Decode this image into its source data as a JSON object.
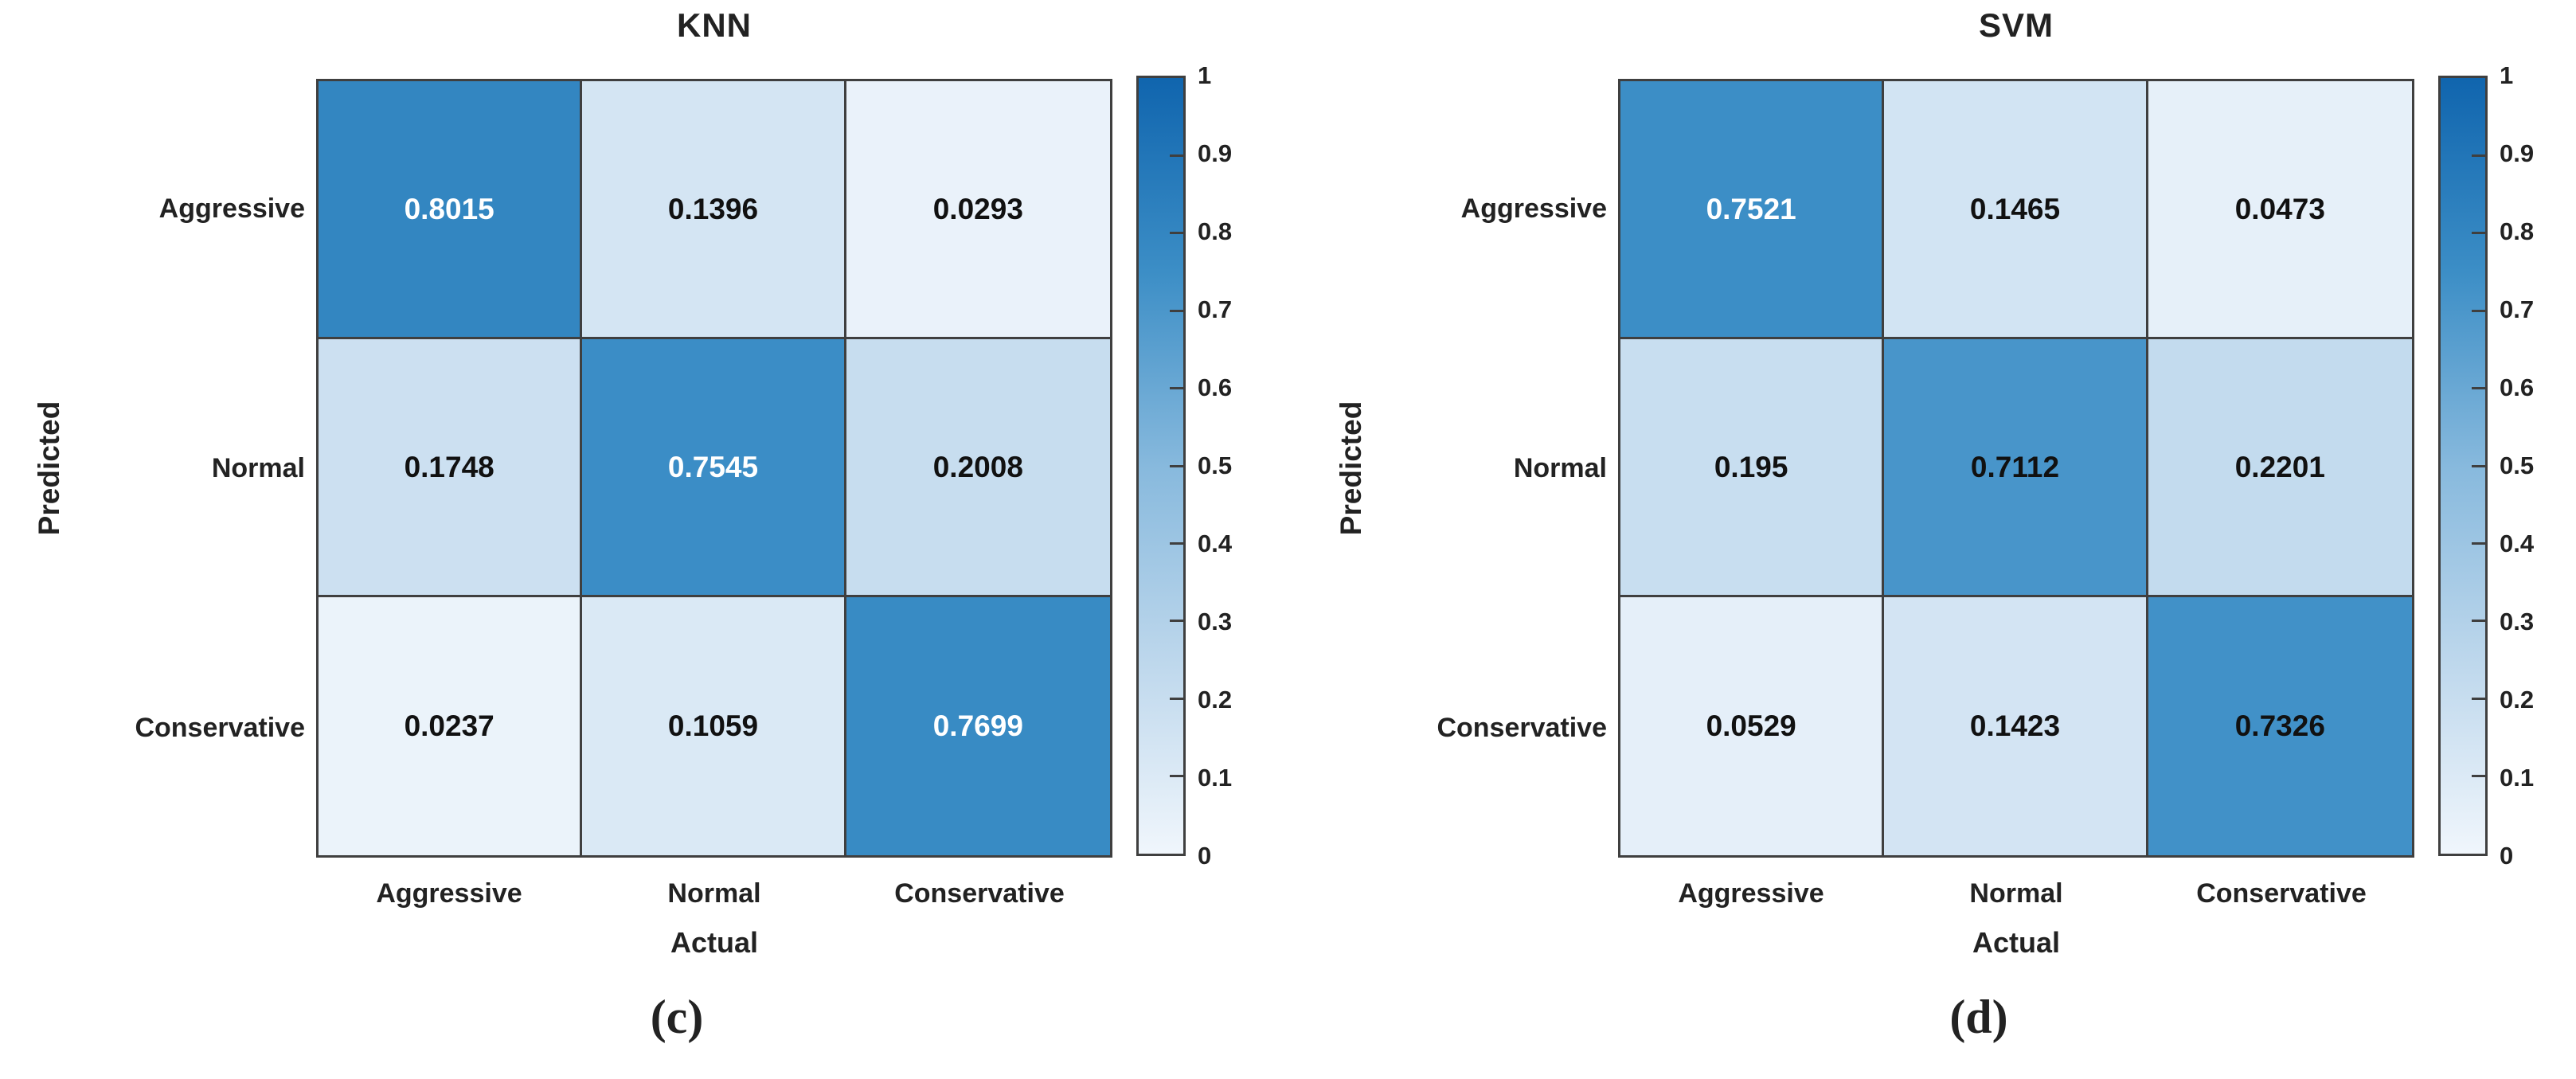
{
  "figure": {
    "background": "#ffffff",
    "text_color": "#222222",
    "grid_color": "#3f3f3f",
    "cell_text_light": "#ffffff",
    "cell_text_dark": "#111111",
    "white_text_threshold": 0.74,
    "colormap_stops": [
      [
        0.0,
        "#f0f6fc"
      ],
      [
        0.25,
        "#bdd7ec"
      ],
      [
        0.5,
        "#87b9dd"
      ],
      [
        0.75,
        "#3c8ec6"
      ],
      [
        1.0,
        "#1065ae"
      ]
    ]
  },
  "chart_data": [
    {
      "type": "heatmap",
      "title": "KNN",
      "xlabel": "Actual",
      "ylabel": "Predicted",
      "caption": "(c)",
      "x_categories": [
        "Aggressive",
        "Normal",
        "Conservative"
      ],
      "y_categories": [
        "Aggressive",
        "Normal",
        "Conservative"
      ],
      "values": [
        [
          0.8015,
          0.1396,
          0.0293
        ],
        [
          0.1748,
          0.7545,
          0.2008
        ],
        [
          0.0237,
          0.1059,
          0.7699
        ]
      ],
      "cell_labels": [
        [
          "0.8015",
          "0.1396",
          "0.0293"
        ],
        [
          "0.1748",
          "0.7545",
          "0.2008"
        ],
        [
          "0.0237",
          "0.1059",
          "0.7699"
        ]
      ],
      "colorbar": {
        "min": 0,
        "max": 1,
        "ticks": [
          "1",
          "0.9",
          "0.8",
          "0.7",
          "0.6",
          "0.5",
          "0.4",
          "0.3",
          "0.2",
          "0.1",
          "0"
        ]
      }
    },
    {
      "type": "heatmap",
      "title": "SVM",
      "xlabel": "Actual",
      "ylabel": "Predicted",
      "caption": "(d)",
      "x_categories": [
        "Aggressive",
        "Normal",
        "Conservative"
      ],
      "y_categories": [
        "Aggressive",
        "Normal",
        "Conservative"
      ],
      "values": [
        [
          0.7521,
          0.1465,
          0.0473
        ],
        [
          0.195,
          0.7112,
          0.2201
        ],
        [
          0.0529,
          0.1423,
          0.7326
        ]
      ],
      "cell_labels": [
        [
          "0.7521",
          "0.1465",
          "0.0473"
        ],
        [
          "0.195",
          "0.7112",
          "0.2201"
        ],
        [
          "0.0529",
          "0.1423",
          "0.7326"
        ]
      ],
      "colorbar": {
        "min": 0,
        "max": 1,
        "ticks": [
          "1",
          "0.9",
          "0.8",
          "0.7",
          "0.6",
          "0.5",
          "0.4",
          "0.3",
          "0.2",
          "0.1",
          "0"
        ]
      }
    }
  ]
}
